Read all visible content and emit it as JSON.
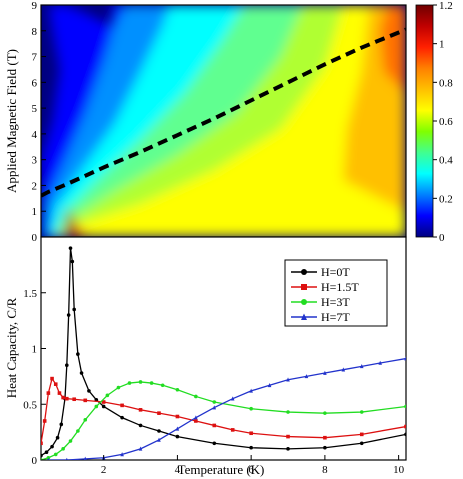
{
  "chart_data": [
    {
      "type": "heatmap",
      "xlim": [
        0.3,
        10.2
      ],
      "ylim": [
        0,
        9
      ],
      "ylabel": "Applied Magnetic Field (T)",
      "y_ticks": [
        "0",
        "1",
        "2",
        "3",
        "4",
        "5",
        "6",
        "7",
        "8",
        "9"
      ],
      "colorbar": {
        "range": [
          0,
          1.2
        ],
        "ticks": [
          "0",
          "0.2",
          "0.4",
          "0.6",
          "0.8",
          "1",
          "1.2"
        ],
        "colors": [
          "#000080",
          "#0000ff",
          "#0080ff",
          "#00ffff",
          "#40ff90",
          "#80ff00",
          "#ffff00",
          "#ffc000",
          "#ff8000",
          "#ff2000",
          "#c00000",
          "#700000"
        ]
      },
      "dashed_line": {
        "x": [
          0.3,
          0.5,
          1.0,
          2.0,
          3.0,
          4.0,
          5.0,
          6.0,
          7.0,
          8.0,
          9.0,
          10.2
        ],
        "y": [
          1.6,
          1.75,
          2.05,
          2.7,
          3.3,
          3.95,
          4.6,
          5.3,
          6.0,
          6.7,
          7.35,
          8.05
        ]
      },
      "grid": false
    },
    {
      "type": "line",
      "xlabel": "Temperature (K)",
      "ylabel": "Heat Capacity, C/R",
      "xlim": [
        0.3,
        10.2
      ],
      "ylim": [
        0,
        2.0
      ],
      "x_ticks": [
        "2",
        "4",
        "6",
        "8",
        "10"
      ],
      "y_ticks": [
        "0",
        "0.5",
        "1",
        "1.5"
      ],
      "legend_position": "top-right",
      "grid": false,
      "series": [
        {
          "name": "H=0T",
          "color": "#000000",
          "marker": "circle",
          "x": [
            0.3,
            0.45,
            0.6,
            0.75,
            0.85,
            0.95,
            1.0,
            1.05,
            1.1,
            1.15,
            1.2,
            1.3,
            1.4,
            1.6,
            1.8,
            2.0,
            2.5,
            3.0,
            3.5,
            4.0,
            5.0,
            6.0,
            7.0,
            8.0,
            9.0,
            10.2
          ],
          "y": [
            0.04,
            0.07,
            0.12,
            0.2,
            0.32,
            0.55,
            0.85,
            1.3,
            1.9,
            1.78,
            1.35,
            0.95,
            0.78,
            0.62,
            0.54,
            0.48,
            0.38,
            0.31,
            0.26,
            0.21,
            0.15,
            0.11,
            0.1,
            0.11,
            0.15,
            0.23
          ]
        },
        {
          "name": "H=1.5T",
          "color": "#dd1111",
          "marker": "square",
          "x": [
            0.3,
            0.4,
            0.5,
            0.6,
            0.7,
            0.8,
            0.9,
            1.0,
            1.2,
            1.5,
            2.0,
            2.5,
            3.0,
            3.5,
            4.0,
            4.5,
            5.0,
            5.5,
            6.0,
            7.0,
            8.0,
            9.0,
            10.2
          ],
          "y": [
            0.15,
            0.35,
            0.6,
            0.73,
            0.68,
            0.6,
            0.56,
            0.55,
            0.545,
            0.535,
            0.52,
            0.49,
            0.45,
            0.42,
            0.39,
            0.35,
            0.31,
            0.27,
            0.24,
            0.21,
            0.2,
            0.23,
            0.3
          ]
        },
        {
          "name": "H=3T",
          "color": "#22dd22",
          "marker": "circle",
          "x": [
            0.3,
            0.5,
            0.7,
            0.9,
            1.1,
            1.3,
            1.5,
            1.8,
            2.1,
            2.4,
            2.7,
            3.0,
            3.3,
            3.6,
            4.0,
            4.5,
            5.0,
            6.0,
            7.0,
            8.0,
            9.0,
            10.2
          ],
          "y": [
            0.0,
            0.02,
            0.05,
            0.1,
            0.17,
            0.26,
            0.36,
            0.48,
            0.58,
            0.65,
            0.69,
            0.7,
            0.69,
            0.67,
            0.63,
            0.57,
            0.52,
            0.46,
            0.43,
            0.42,
            0.43,
            0.48
          ]
        },
        {
          "name": "H=7T",
          "color": "#2233cc",
          "marker": "triangle",
          "x": [
            0.5,
            1.0,
            1.5,
            2.0,
            2.5,
            3.0,
            3.5,
            4.0,
            4.5,
            5.0,
            5.5,
            6.0,
            6.5,
            7.0,
            7.5,
            8.0,
            8.5,
            9.0,
            9.5,
            10.2
          ],
          "y": [
            0.0,
            0.0,
            0.01,
            0.02,
            0.05,
            0.1,
            0.18,
            0.28,
            0.38,
            0.47,
            0.55,
            0.62,
            0.67,
            0.72,
            0.75,
            0.78,
            0.81,
            0.84,
            0.87,
            0.91
          ]
        }
      ]
    }
  ]
}
